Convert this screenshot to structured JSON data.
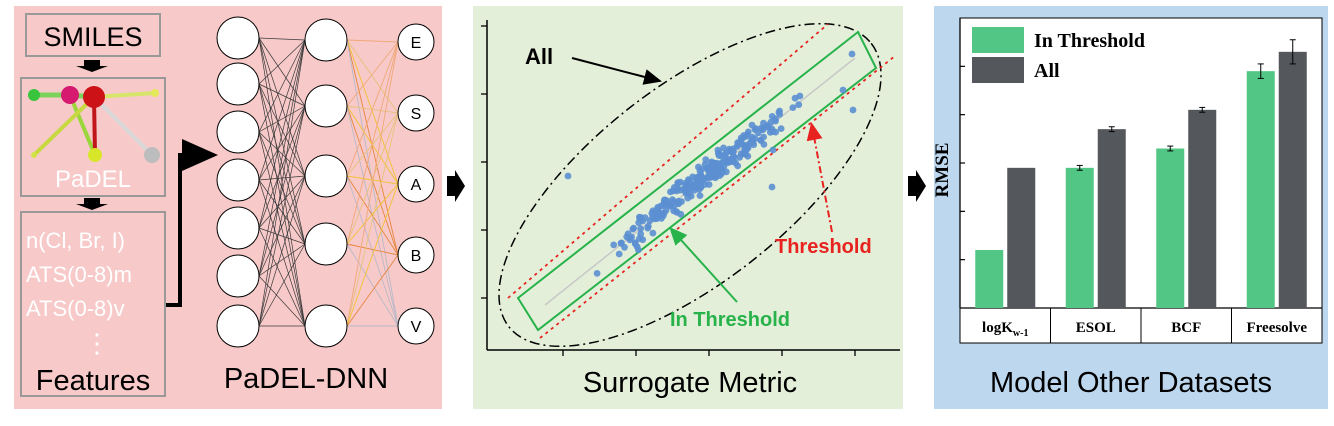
{
  "panel1": {
    "smiles_label": "SMILES",
    "padel_label": "PaDEL",
    "descriptors": [
      "n(Cl, Br, I)",
      "ATS(0-8)m",
      "ATS(0-8)v"
    ],
    "ellipsis": "⋮",
    "features_label": "Features",
    "network_caption": "PaDEL-DNN",
    "outputs": [
      "E",
      "S",
      "A",
      "B",
      "V"
    ],
    "colors": {
      "background": "#f7c9c9",
      "box_border": "#999999",
      "descriptor_text": "#ffffff"
    }
  },
  "panel2": {
    "label_all": "All",
    "label_threshold": "Threshold",
    "label_in_threshold": "In Threshold",
    "xlabel": "Surrogate Metric",
    "colors": {
      "background": "#e3efd9",
      "points": "#5b8fd1",
      "threshold": "#e8231f",
      "in_threshold": "#27b24a"
    }
  },
  "panel3": {
    "xlabel": "Model Other Datasets",
    "colors": {
      "background": "#bdd7ee"
    }
  },
  "chart_data": {
    "type": "bar",
    "categories": [
      "logK",
      "ESOL",
      "BCF",
      "Freesolve"
    ],
    "category_subscript": [
      "w-1",
      "",
      "",
      ""
    ],
    "ylabel": "RMSE",
    "legend_position": "top-left",
    "series": [
      {
        "name": "In Threshold",
        "color": "#52c785",
        "values": [
          0.12,
          0.29,
          0.33,
          0.49
        ],
        "errors": [
          0,
          0.005,
          0.005,
          0.015
        ]
      },
      {
        "name": "All",
        "color": "#54575c",
        "values": [
          0.29,
          0.37,
          0.41,
          0.53
        ],
        "errors": [
          0,
          0.005,
          0.005,
          0.025
        ]
      }
    ],
    "ylim": [
      0,
      0.6
    ]
  }
}
